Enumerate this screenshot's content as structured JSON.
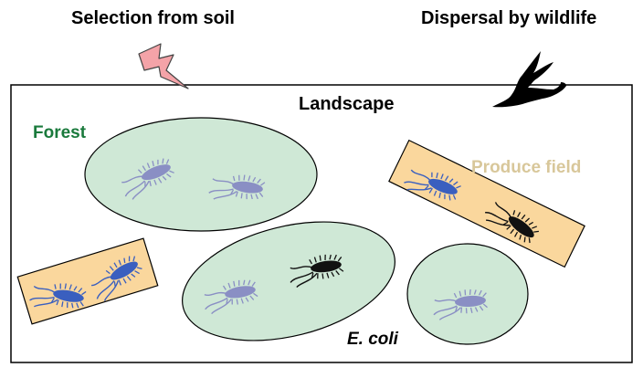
{
  "labels": {
    "selection": "Selection from soil",
    "dispersal": "Dispersal by wildlife",
    "landscape": "Landscape",
    "forest": "Forest",
    "produce": "Produce field",
    "organism": "E. coli"
  },
  "colors": {
    "forest_fill": "#cfe8d6",
    "produce_fill": "#fad79d",
    "forest_text": "#1a7a3c",
    "produce_text": "#d8c79a",
    "bacterium_blue": "#3a5fbf",
    "bacterium_lavender": "#8a8fc4",
    "bacterium_black": "#111111",
    "lightning": "#f4a3a8"
  },
  "icons": [
    "lightning-icon",
    "bird-icon",
    "bacterium-icon"
  ]
}
